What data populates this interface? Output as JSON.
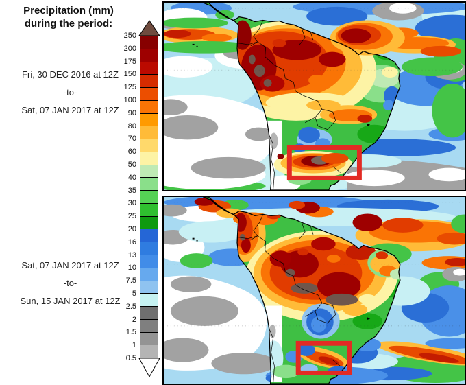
{
  "title": {
    "line1": "Precipitation (mm)",
    "line2": "during the period:"
  },
  "periods": [
    {
      "from": "Fri, 30 DEC 2016 at 12Z",
      "separator": "-to-",
      "to": "Sat, 07 JAN 2017 at 12Z"
    },
    {
      "from": "Sat, 07 JAN 2017 at 12Z",
      "separator": "-to-",
      "to": "Sun, 15 JAN 2017 at 12Z"
    }
  ],
  "legend": {
    "values": [
      "250",
      "200",
      "175",
      "150",
      "125",
      "100",
      "90",
      "80",
      "70",
      "60",
      "50",
      "40",
      "35",
      "30",
      "25",
      "20",
      "16",
      "13",
      "10",
      "7.5",
      "5",
      "2.5",
      "2",
      "1.5",
      "1",
      "0.5"
    ],
    "cell_colors": [
      "#870000",
      "#9e0000",
      "#bb0a00",
      "#d52c00",
      "#ec4e00",
      "#fa7405",
      "#ff9a00",
      "#ffbb38",
      "#ffd96b",
      "#fdf3a5",
      "#bfeab4",
      "#8adf8a",
      "#55d155",
      "#2fbf2f",
      "#0f9a10",
      "#2566d6",
      "#2f7ce0",
      "#418ce8",
      "#66a9ee",
      "#8fc3f0",
      "#c6f2f2",
      "#6f6f6f",
      "#7f7f7f",
      "#949494",
      "#b4b4b4"
    ],
    "over_arrow_color": "#6f4b3e",
    "under_arrow_color": "#ffffff"
  },
  "maps": [
    {
      "name": "top",
      "highlight_box_color": "#e22b24"
    },
    {
      "name": "bottom",
      "highlight_box_color": "#e22b24"
    }
  ]
}
